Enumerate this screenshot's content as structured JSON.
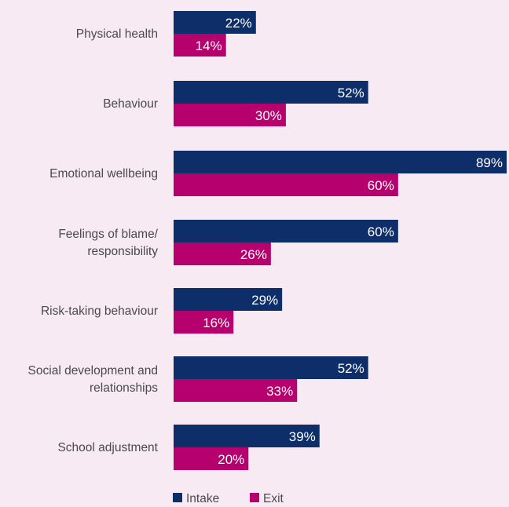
{
  "chart_data": {
    "type": "bar",
    "orientation": "horizontal",
    "categories": [
      [
        "Physical health"
      ],
      [
        "Behaviour"
      ],
      [
        "Emotional wellbeing"
      ],
      [
        "Feelings of blame/",
        "responsibility"
      ],
      [
        "Risk-taking behaviour"
      ],
      [
        "Social development and",
        "relationships"
      ],
      [
        "School adjustment"
      ]
    ],
    "series": [
      {
        "name": "Intake",
        "color": "#0e2e6a",
        "values": [
          22,
          52,
          89,
          60,
          29,
          52,
          39
        ],
        "labels": [
          "22%",
          "52%",
          "89%",
          "60%",
          "29%",
          "52%",
          "39%"
        ]
      },
      {
        "name": "Exit",
        "color": "#b5006e",
        "values": [
          14,
          30,
          60,
          26,
          16,
          33,
          20
        ],
        "labels": [
          "14%",
          "30%",
          "60%",
          "26%",
          "16%",
          "33%",
          "20%"
        ]
      }
    ],
    "xlim": [
      0,
      89
    ],
    "legend": "bottom-center",
    "grid": false
  },
  "background": "#f8eaf3"
}
